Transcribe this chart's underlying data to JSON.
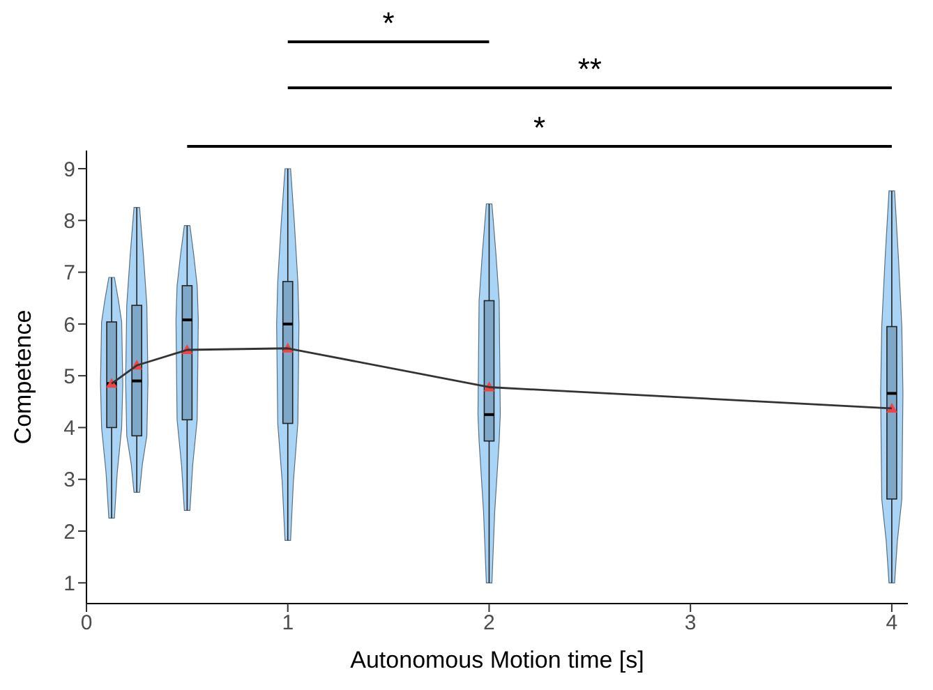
{
  "chart_data": {
    "type": "box",
    "xlabel": "Autonomous Motion time [s]",
    "ylabel": "Competence",
    "xlim": [
      0,
      4.08
    ],
    "xticks": [
      0,
      1,
      2,
      3,
      4
    ],
    "ylim": [
      0.6,
      9.35
    ],
    "yticks": [
      1,
      2,
      3,
      4,
      5,
      6,
      7,
      8,
      9
    ],
    "series": [
      {
        "color": "#7ea7c8",
        "x": [
          0.125,
          0.25,
          0.5,
          1,
          2,
          4
        ],
        "boxes": [
          {
            "low": 2.25,
            "q1": 4.0,
            "median": 4.85,
            "q3": 6.04,
            "high": 6.9,
            "mean": 4.85
          },
          {
            "low": 2.75,
            "q1": 3.84,
            "median": 4.9,
            "q3": 6.36,
            "high": 8.25,
            "mean": 5.2
          },
          {
            "low": 2.4,
            "q1": 4.15,
            "median": 6.08,
            "q3": 6.74,
            "high": 7.9,
            "mean": 5.5
          },
          {
            "low": 1.82,
            "q1": 4.08,
            "median": 6.0,
            "q3": 6.82,
            "high": 9.0,
            "mean": 5.53
          },
          {
            "low": 1.0,
            "q1": 3.74,
            "median": 4.25,
            "q3": 6.45,
            "high": 8.32,
            "mean": 4.78
          },
          {
            "low": 1.0,
            "q1": 2.62,
            "median": 4.66,
            "q3": 5.95,
            "high": 8.57,
            "mean": 4.37
          }
        ]
      },
      {
        "type": "line",
        "color": "#333333",
        "marker": "none",
        "x": [
          0.125,
          0.25,
          0.5,
          1,
          2,
          4
        ],
        "values": [
          4.85,
          5.2,
          5.5,
          5.53,
          4.78,
          4.37
        ]
      }
    ],
    "annotations": [
      "*",
      "**",
      "*"
    ]
  }
}
